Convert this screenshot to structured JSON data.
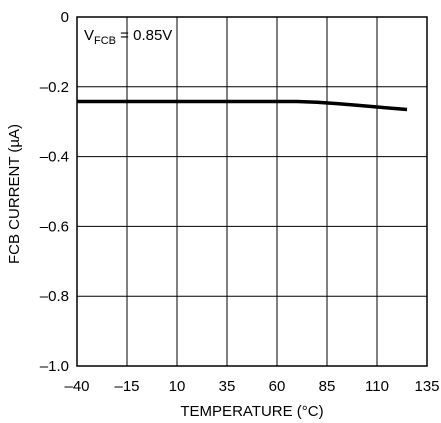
{
  "chart_data": {
    "type": "line",
    "title": "",
    "xlabel": "TEMPERATURE (°C)",
    "ylabel": "FCB CURRENT (µA)",
    "xlim": [
      -40,
      135
    ],
    "ylim": [
      -1.0,
      0
    ],
    "grid": true,
    "x_ticks": [
      -40,
      -15,
      10,
      35,
      60,
      85,
      110,
      135
    ],
    "x_tick_labels": [
      "–40",
      "–15",
      "10",
      "35",
      "60",
      "85",
      "110",
      "135"
    ],
    "y_ticks": [
      0,
      -0.2,
      -0.4,
      -0.6,
      -0.8,
      -1.0
    ],
    "y_tick_labels": [
      "0",
      "–0.2",
      "–0.4",
      "–0.6",
      "–0.8",
      "–1.0"
    ],
    "annotation": {
      "prefix": "V",
      "subscript": "FCB",
      "suffix": " = 0.85V"
    },
    "series": [
      {
        "x": [
          -40,
          -15,
          10,
          35,
          60,
          70,
          80,
          90,
          100,
          110,
          125
        ],
        "y": [
          -0.242,
          -0.242,
          -0.242,
          -0.242,
          -0.242,
          -0.242,
          -0.244,
          -0.248,
          -0.253,
          -0.258,
          -0.265
        ]
      }
    ]
  }
}
